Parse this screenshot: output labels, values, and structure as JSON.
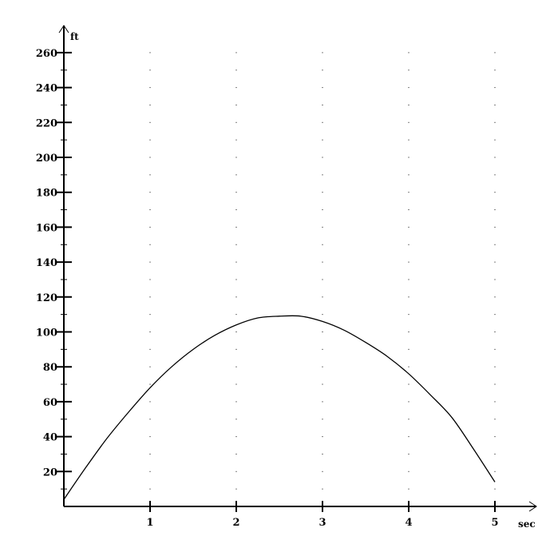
{
  "chart_data": {
    "type": "line",
    "title": "",
    "xlabel": "sec",
    "ylabel": "ft",
    "xlim": [
      0,
      5.45
    ],
    "ylim": [
      0,
      270
    ],
    "x_ticks": [
      1,
      2,
      3,
      4,
      5
    ],
    "y_ticks": [
      20,
      40,
      60,
      80,
      100,
      120,
      140,
      160,
      180,
      200,
      220,
      240,
      260
    ],
    "grid": "dotted",
    "legend": "none",
    "series": [
      {
        "color": "#000000",
        "x": [
          0,
          0.25,
          0.5,
          0.75,
          1,
          1.25,
          1.5,
          1.75,
          2,
          2.25,
          2.5,
          2.75,
          3,
          3.25,
          3.5,
          3.75,
          4,
          4.25,
          4.5,
          4.75,
          5
        ],
        "values": [
          4,
          22,
          39,
          54,
          68,
          80,
          90,
          98,
          104,
          108,
          109,
          109,
          106,
          101,
          94,
          86,
          76,
          64,
          51,
          33,
          14
        ]
      }
    ]
  }
}
